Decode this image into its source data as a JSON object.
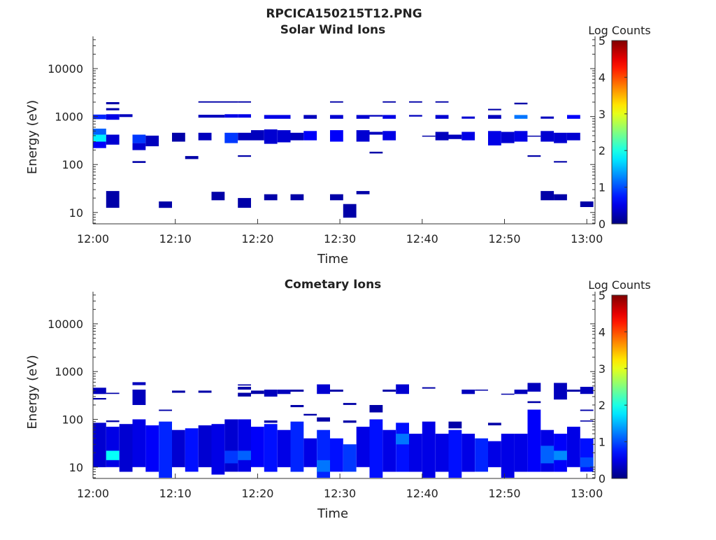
{
  "title": "RPCICA150215T12.PNG",
  "chart_data": [
    {
      "type": "heatmap",
      "title": "Solar Wind Ions",
      "xlabel": "Time",
      "ylabel": "Energy (eV)",
      "x_range": [
        0,
        61
      ],
      "x_ticks": [
        0,
        10,
        20,
        30,
        40,
        50,
        60
      ],
      "x_tick_labels": [
        "12:00",
        "12:10",
        "12:20",
        "12:30",
        "12:40",
        "12:50",
        "13:00"
      ],
      "y_scale": "log",
      "y_range": [
        5.8,
        47000
      ],
      "y_ticks": [
        10,
        100,
        1000,
        10000
      ],
      "y_tick_labels": [
        "10",
        "100",
        "1000",
        "10000"
      ],
      "colorbar": {
        "label": "Log Counts",
        "range": [
          0,
          5
        ],
        "ticks": [
          "0",
          "1",
          "2",
          "3",
          "4",
          "5"
        ],
        "colormap": "jet"
      },
      "cells": [
        [
          0,
          1.6,
          220,
          300,
          0.6
        ],
        [
          0,
          1.6,
          300,
          420,
          1.8
        ],
        [
          0,
          1.6,
          420,
          560,
          1.1
        ],
        [
          0,
          1.6,
          880,
          1100,
          0.8
        ],
        [
          1.6,
          3.2,
          260,
          420,
          0.4
        ],
        [
          1.6,
          3.2,
          860,
          1120,
          0.5
        ],
        [
          1.6,
          3.2,
          12.5,
          28,
          0.2
        ],
        [
          1.6,
          3.2,
          1800,
          2000,
          0.2
        ],
        [
          1.6,
          3.2,
          1350,
          1500,
          0.2
        ],
        [
          3.2,
          4.8,
          980,
          1120,
          0.3
        ],
        [
          4.8,
          6.4,
          200,
          280,
          0.4
        ],
        [
          4.8,
          6.4,
          280,
          420,
          0.9
        ],
        [
          4.8,
          6.4,
          108,
          118,
          0.2
        ],
        [
          6.4,
          8,
          240,
          400,
          0.3
        ],
        [
          8,
          9.6,
          12.5,
          17,
          0.2
        ],
        [
          9.6,
          11.2,
          300,
          460,
          0.2
        ],
        [
          11.2,
          12.8,
          130,
          150,
          0.2
        ],
        [
          12.8,
          14.4,
          320,
          460,
          0.3
        ],
        [
          12.8,
          14.4,
          950,
          1090,
          0.3
        ],
        [
          12.8,
          17.6,
          1950,
          2080,
          0.2
        ],
        [
          14.4,
          16,
          18,
          27,
          0.2
        ],
        [
          14.4,
          16,
          950,
          1090,
          0.3
        ],
        [
          16,
          17.6,
          280,
          460,
          0.9
        ],
        [
          16,
          17.6,
          950,
          1120,
          0.5
        ],
        [
          17.6,
          19.2,
          950,
          1120,
          0.5
        ],
        [
          17.6,
          19.2,
          320,
          460,
          0.3
        ],
        [
          17.6,
          19.2,
          145,
          156,
          0.2
        ],
        [
          17.6,
          19.2,
          12.5,
          20,
          0.2
        ],
        [
          17.6,
          19.2,
          1950,
          2080,
          0.2
        ],
        [
          19.2,
          20.8,
          320,
          520,
          0.3
        ],
        [
          20.8,
          22.4,
          270,
          540,
          0.4
        ],
        [
          20.8,
          22.4,
          18,
          24,
          0.2
        ],
        [
          20.8,
          24,
          900,
          1080,
          0.5
        ],
        [
          22.4,
          24,
          290,
          520,
          0.4
        ],
        [
          24,
          25.6,
          320,
          460,
          0.3
        ],
        [
          24,
          25.6,
          18,
          24,
          0.2
        ],
        [
          25.6,
          27.2,
          320,
          500,
          0.6
        ],
        [
          25.6,
          27.2,
          900,
          1080,
          0.3
        ],
        [
          28.8,
          30.4,
          300,
          520,
          0.6
        ],
        [
          28.8,
          30.4,
          900,
          1080,
          0.4
        ],
        [
          28.8,
          30.4,
          18,
          24,
          0.2
        ],
        [
          28.8,
          30.4,
          1950,
          2080,
          0.2
        ],
        [
          30.4,
          32,
          7.8,
          15,
          0.2
        ],
        [
          32,
          33.6,
          300,
          520,
          0.4
        ],
        [
          32,
          33.6,
          900,
          1080,
          0.4
        ],
        [
          32,
          33.6,
          24,
          28,
          0.2
        ],
        [
          33.6,
          35.2,
          420,
          480,
          0.3
        ],
        [
          33.6,
          35.2,
          170,
          185,
          0.2
        ],
        [
          33.6,
          35.2,
          1000,
          1080,
          0.3
        ],
        [
          35.2,
          36.8,
          320,
          500,
          0.5
        ],
        [
          35.2,
          36.8,
          900,
          1080,
          0.5
        ],
        [
          35.2,
          36.8,
          1950,
          2080,
          0.2
        ],
        [
          38.4,
          40,
          1950,
          2080,
          0.2
        ],
        [
          38.4,
          40,
          1000,
          1080,
          0.3
        ],
        [
          40,
          41.6,
          380,
          400,
          0.2
        ],
        [
          41.6,
          43.2,
          320,
          480,
          0.3
        ],
        [
          41.6,
          43.2,
          900,
          1080,
          0.4
        ],
        [
          41.6,
          43.2,
          1950,
          2080,
          0.2
        ],
        [
          43.2,
          44.8,
          340,
          420,
          0.3
        ],
        [
          44.8,
          46.4,
          320,
          480,
          0.5
        ],
        [
          44.8,
          46.4,
          900,
          1000,
          0.4
        ],
        [
          48,
          49.6,
          250,
          500,
          0.5
        ],
        [
          48,
          49.6,
          900,
          1080,
          0.3
        ],
        [
          48,
          49.6,
          1350,
          1450,
          0.2
        ],
        [
          49.6,
          51.2,
          280,
          480,
          0.4
        ],
        [
          51.2,
          52.8,
          300,
          500,
          0.5
        ],
        [
          51.2,
          52.8,
          900,
          1080,
          1.2
        ],
        [
          51.2,
          52.8,
          1800,
          1950,
          0.2
        ],
        [
          52.8,
          54.4,
          380,
          400,
          0.2
        ],
        [
          52.8,
          54.4,
          145,
          156,
          0.2
        ],
        [
          54.4,
          56,
          300,
          500,
          0.4
        ],
        [
          54.4,
          56,
          900,
          1000,
          0.3
        ],
        [
          54.4,
          56,
          18,
          28,
          0.2
        ],
        [
          56,
          57.6,
          280,
          460,
          0.4
        ],
        [
          56,
          57.6,
          110,
          118,
          0.2
        ],
        [
          56,
          57.6,
          18,
          24,
          0.2
        ],
        [
          57.6,
          59.2,
          320,
          460,
          0.4
        ],
        [
          57.6,
          59.2,
          900,
          1080,
          0.6
        ],
        [
          59.2,
          60.8,
          13,
          17,
          0.2
        ]
      ]
    },
    {
      "type": "heatmap",
      "title": "Cometary Ions",
      "xlabel": "Time",
      "ylabel": "Energy (eV)",
      "x_range": [
        0,
        61
      ],
      "x_ticks": [
        0,
        10,
        20,
        30,
        40,
        50,
        60
      ],
      "x_tick_labels": [
        "12:00",
        "12:10",
        "12:20",
        "12:30",
        "12:40",
        "12:50",
        "13:00"
      ],
      "y_scale": "log",
      "y_range": [
        5.8,
        47000
      ],
      "y_ticks": [
        10,
        100,
        1000,
        10000
      ],
      "y_tick_labels": [
        "10",
        "100",
        "1000",
        "10000"
      ],
      "colorbar": {
        "label": "Log Counts",
        "range": [
          0,
          5
        ],
        "ticks": [
          "0",
          "1",
          "2",
          "3",
          "4",
          "5"
        ],
        "colormap": "jet"
      },
      "cells": [
        [
          0,
          1.6,
          10,
          85,
          0.4
        ],
        [
          0,
          1.6,
          340,
          460,
          0.3
        ],
        [
          0,
          1.6,
          260,
          280,
          0.2
        ],
        [
          1.6,
          3.2,
          10,
          70,
          0.5
        ],
        [
          1.6,
          3.2,
          14,
          22,
          1.9
        ],
        [
          1.6,
          3.2,
          340,
          360,
          0.2
        ],
        [
          1.6,
          3.2,
          88,
          95,
          0.2
        ],
        [
          3.2,
          4.8,
          8,
          80,
          0.4
        ],
        [
          4.8,
          6.4,
          10,
          100,
          0.5
        ],
        [
          4.8,
          6.4,
          200,
          420,
          0.3
        ],
        [
          4.8,
          6.4,
          520,
          600,
          0.3
        ],
        [
          6.4,
          8,
          8,
          75,
          0.6
        ],
        [
          8,
          9.6,
          6,
          90,
          0.8
        ],
        [
          8,
          9.6,
          150,
          160,
          0.2
        ],
        [
          9.6,
          11.2,
          10,
          60,
          0.4
        ],
        [
          9.6,
          11.2,
          360,
          400,
          0.2
        ],
        [
          11.2,
          12.8,
          8,
          65,
          0.7
        ],
        [
          12.8,
          14.4,
          10,
          75,
          0.4
        ],
        [
          12.8,
          14.4,
          360,
          400,
          0.2
        ],
        [
          14.4,
          16,
          7,
          80,
          0.5
        ],
        [
          16,
          17.6,
          8,
          100,
          0.4
        ],
        [
          16,
          17.6,
          12,
          22,
          0.9
        ],
        [
          17.6,
          19.2,
          8,
          100,
          0.5
        ],
        [
          17.6,
          19.2,
          14,
          22,
          1.1
        ],
        [
          17.6,
          19.2,
          420,
          480,
          0.2
        ],
        [
          17.6,
          19.2,
          300,
          360,
          0.2
        ],
        [
          17.6,
          19.2,
          510,
          540,
          0.2
        ],
        [
          19.2,
          20.8,
          10,
          70,
          0.6
        ],
        [
          19.2,
          20.8,
          340,
          400,
          0.2
        ],
        [
          20.8,
          22.4,
          8,
          80,
          0.7
        ],
        [
          20.8,
          22.4,
          300,
          420,
          0.3
        ],
        [
          20.8,
          22.4,
          85,
          95,
          0.2
        ],
        [
          22.4,
          24,
          10,
          60,
          0.5
        ],
        [
          22.4,
          24,
          340,
          420,
          0.3
        ],
        [
          24,
          25.6,
          8,
          90,
          0.8
        ],
        [
          24,
          25.6,
          180,
          200,
          0.2
        ],
        [
          24,
          25.6,
          380,
          420,
          0.2
        ],
        [
          25.6,
          27.2,
          10,
          40,
          0.5
        ],
        [
          25.6,
          27.2,
          120,
          130,
          0.2
        ],
        [
          27.2,
          28.8,
          6,
          60,
          0.8
        ],
        [
          27.2,
          28.8,
          8,
          14,
          1.2
        ],
        [
          27.2,
          28.8,
          90,
          110,
          0.2
        ],
        [
          27.2,
          28.8,
          340,
          540,
          0.4
        ],
        [
          28.8,
          30.4,
          8,
          40,
          0.7
        ],
        [
          28.8,
          30.4,
          380,
          420,
          0.2
        ],
        [
          30.4,
          32,
          8,
          30,
          0.9
        ],
        [
          30.4,
          32,
          200,
          220,
          0.2
        ],
        [
          30.4,
          32,
          85,
          95,
          0.2
        ],
        [
          32,
          33.6,
          10,
          70,
          0.5
        ],
        [
          33.6,
          35.2,
          6,
          100,
          0.7
        ],
        [
          33.6,
          35.2,
          140,
          200,
          0.2
        ],
        [
          35.2,
          36.8,
          8,
          60,
          0.5
        ],
        [
          35.2,
          36.8,
          380,
          420,
          0.2
        ],
        [
          36.8,
          38.4,
          8,
          85,
          0.7
        ],
        [
          36.8,
          38.4,
          30,
          50,
          1.2
        ],
        [
          36.8,
          38.4,
          340,
          540,
          0.4
        ],
        [
          38.4,
          40,
          8,
          50,
          0.5
        ],
        [
          40,
          41.6,
          6,
          90,
          0.5
        ],
        [
          40,
          41.6,
          440,
          470,
          0.2
        ],
        [
          41.6,
          43.2,
          8,
          50,
          0.5
        ],
        [
          43.2,
          44.8,
          6,
          60,
          0.7
        ],
        [
          43.2,
          44.8,
          65,
          90,
          0.2
        ],
        [
          44.8,
          46.4,
          8,
          50,
          0.5
        ],
        [
          44.8,
          46.4,
          340,
          420,
          0.3
        ],
        [
          46.4,
          48,
          8,
          40,
          0.8
        ],
        [
          46.4,
          48,
          400,
          420,
          0.2
        ],
        [
          48,
          49.6,
          10,
          35,
          0.5
        ],
        [
          48,
          49.6,
          75,
          85,
          0.2
        ],
        [
          49.6,
          51.2,
          6,
          50,
          0.5
        ],
        [
          49.6,
          51.2,
          330,
          345,
          0.2
        ],
        [
          51.2,
          52.8,
          8,
          50,
          0.5
        ],
        [
          51.2,
          52.8,
          340,
          420,
          0.3
        ],
        [
          52.8,
          54.4,
          8,
          160,
          0.6
        ],
        [
          52.8,
          54.4,
          380,
          580,
          0.3
        ],
        [
          52.8,
          54.4,
          220,
          240,
          0.2
        ],
        [
          54.4,
          56,
          8,
          60,
          0.5
        ],
        [
          54.4,
          56,
          12,
          28,
          1.1
        ],
        [
          56,
          57.6,
          8,
          50,
          0.6
        ],
        [
          56,
          57.6,
          14,
          22,
          1.3
        ],
        [
          56,
          57.6,
          260,
          580,
          0.3
        ],
        [
          57.6,
          59.2,
          10,
          70,
          0.5
        ],
        [
          57.6,
          59.2,
          380,
          420,
          0.2
        ],
        [
          59.2,
          60.8,
          8,
          40,
          0.7
        ],
        [
          59.2,
          60.8,
          10,
          16,
          1.0
        ],
        [
          59.2,
          60.8,
          340,
          480,
          0.3
        ],
        [
          59.2,
          60.8,
          150,
          160,
          0.2
        ],
        [
          59.2,
          60.8,
          90,
          95,
          0.2
        ]
      ]
    }
  ]
}
